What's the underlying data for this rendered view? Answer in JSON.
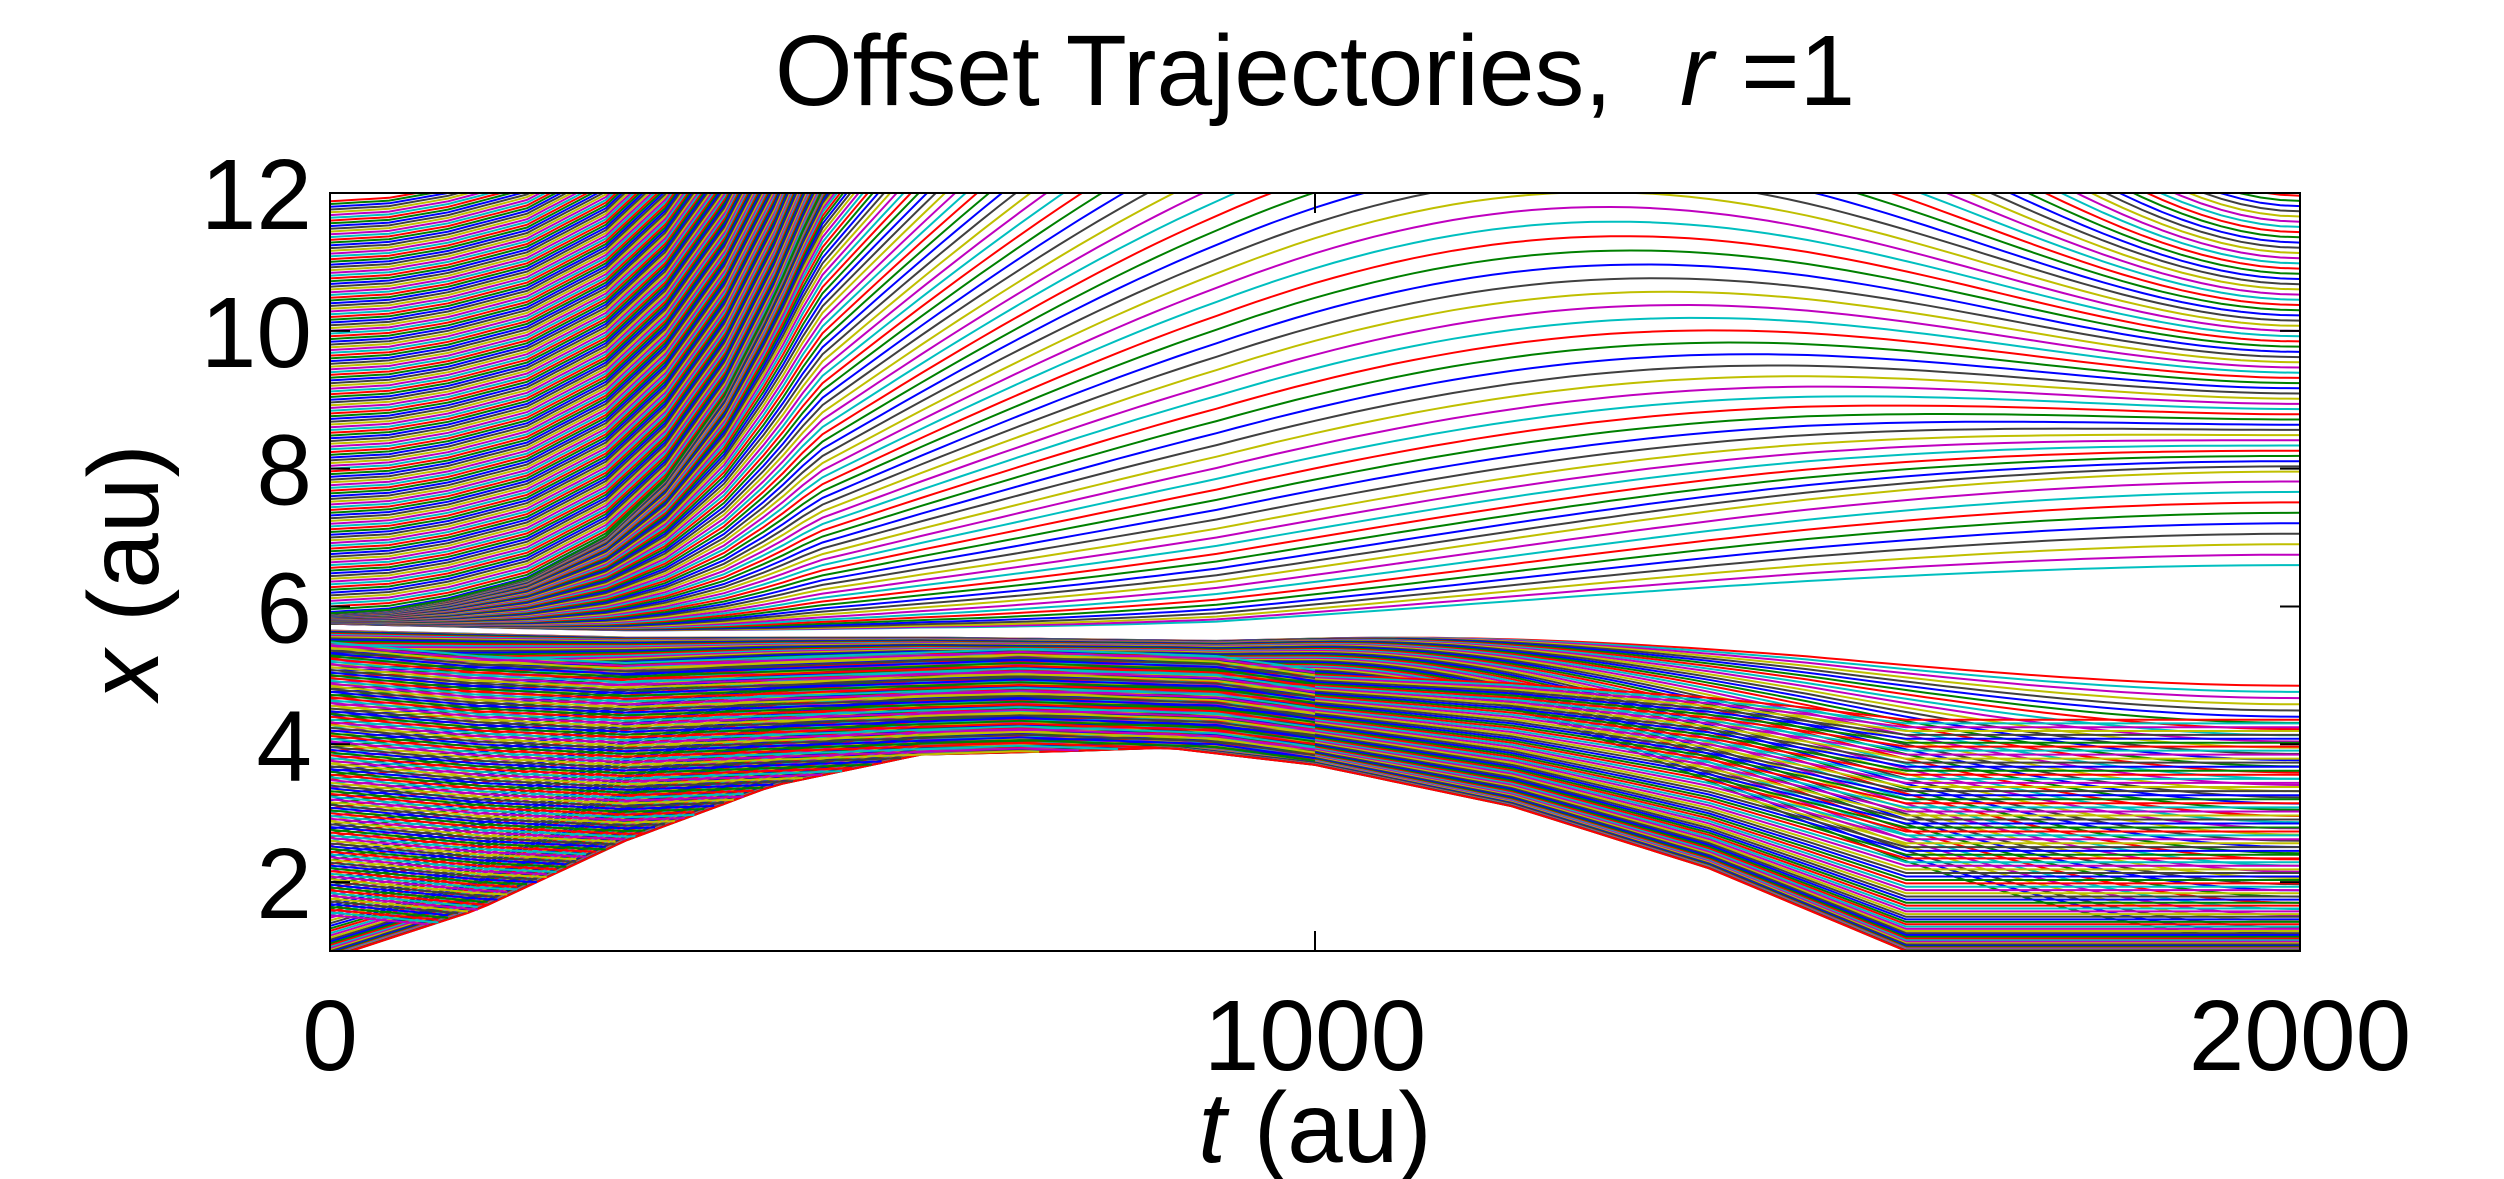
{
  "chart_data": {
    "type": "line",
    "title": {
      "text": "Offset Trajectories,",
      "var": "r",
      "eq": " =1"
    },
    "xlabel": {
      "var": "t",
      "unit": " (au)"
    },
    "ylabel": {
      "var": "x",
      "unit": " (au)"
    },
    "xlim": [
      0,
      2000
    ],
    "ylim": [
      1,
      12
    ],
    "xticks": [
      0,
      1000,
      2000
    ],
    "xtick_labels": [
      "0",
      "1000",
      "2000"
    ],
    "yticks": [
      2,
      4,
      6,
      8,
      10,
      12
    ],
    "ytick_labels": [
      "2",
      "4",
      "6",
      "8",
      "10",
      "12"
    ],
    "grid": false,
    "legend": "none",
    "colors": [
      "#0000ff",
      "#008000",
      "#ff0000",
      "#00bfbf",
      "#bf00bf",
      "#bfbf00",
      "#404040"
    ],
    "series_count": 300,
    "spacing": 0.04,
    "upper_separatrix": [
      [
        0,
        5.9
      ],
      [
        60,
        5.95
      ],
      [
        120,
        6.1
      ],
      [
        200,
        6.4
      ],
      [
        280,
        7.0
      ],
      [
        340,
        7.8
      ],
      [
        400,
        9.0
      ],
      [
        450,
        10.4
      ],
      [
        480,
        11.4
      ],
      [
        500,
        12.0
      ]
    ],
    "lower_separatrix": [
      [
        0,
        5.5
      ],
      [
        150,
        5.3
      ],
      [
        300,
        5.2
      ],
      [
        500,
        5.3
      ],
      [
        700,
        5.4
      ],
      [
        900,
        5.3
      ],
      [
        1000,
        5.1
      ]
    ],
    "stagnation_line": [
      [
        0,
        5.7
      ],
      [
        300,
        5.6
      ],
      [
        600,
        5.6
      ],
      [
        900,
        5.55
      ],
      [
        1200,
        5.65
      ],
      [
        1500,
        5.75
      ],
      [
        2000,
        5.75
      ]
    ],
    "lower_envelope": [
      [
        0,
        0.9
      ],
      [
        150,
        1.6
      ],
      [
        300,
        2.6
      ],
      [
        450,
        3.4
      ],
      [
        600,
        3.85
      ],
      [
        750,
        3.9
      ],
      [
        850,
        3.95
      ],
      [
        1000,
        3.7
      ],
      [
        1200,
        3.1
      ],
      [
        1400,
        2.2
      ],
      [
        1600,
        1.0
      ]
    ],
    "fan_up_end_x": [
      6.6,
      7.95,
      9.0,
      9.9,
      10.6,
      11.2,
      11.7,
      12.0
    ],
    "fan_down_end_x": [
      4.85,
      3.65,
      2.95,
      2.4,
      1.9,
      1.5,
      1.1
    ]
  }
}
